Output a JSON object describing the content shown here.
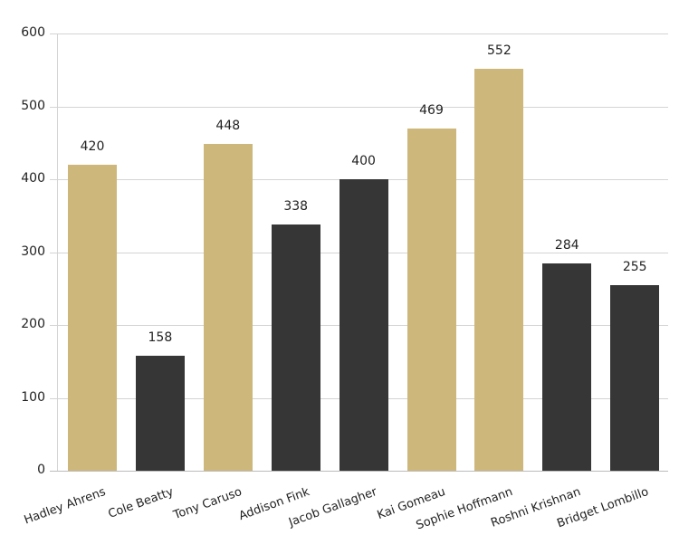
{
  "chart_data": {
    "type": "bar",
    "title": "",
    "xlabel": "",
    "ylabel": "",
    "ylim": [
      0,
      600
    ],
    "yticks": [
      0,
      100,
      200,
      300,
      400,
      500,
      600
    ],
    "grid": true,
    "legend": null,
    "categories": [
      "Hadley Ahrens",
      "Cole Beatty",
      "Tony Caruso",
      "Addison Fink",
      "Jacob Gallagher",
      "Kai Gomeau",
      "Sophie Hoffmann",
      "Roshni Krishnan",
      "Bridget Lombillo"
    ],
    "values": [
      420,
      158,
      448,
      338,
      400,
      469,
      552,
      284,
      255
    ],
    "colors": [
      "#cdb77b",
      "#363636",
      "#cdb77b",
      "#363636",
      "#363636",
      "#cdb77b",
      "#cdb77b",
      "#363636",
      "#363636"
    ],
    "data_labels": [
      "420",
      "158",
      "448",
      "338",
      "400",
      "469",
      "552",
      "284",
      "255"
    ]
  }
}
